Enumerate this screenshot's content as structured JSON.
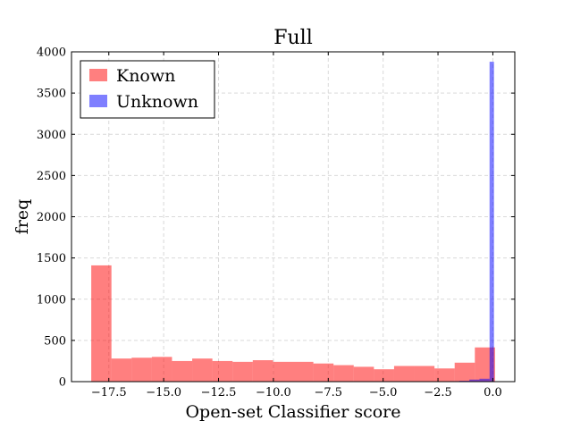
{
  "chart_data": {
    "type": "bar",
    "title": "Full",
    "xlabel": "Open-set Classifier score",
    "ylabel": "freq",
    "xlim": [
      -19.2,
      1.0
    ],
    "ylim": [
      0,
      4000
    ],
    "x_ticks": [
      -17.5,
      -15.0,
      -12.5,
      -10.0,
      -7.5,
      -5.0,
      -2.5,
      0.0
    ],
    "x_tick_labels": [
      "−17.5",
      "−15.0",
      "−12.5",
      "−10.0",
      "−7.5",
      "−5.0",
      "−2.5",
      "0.0"
    ],
    "y_ticks": [
      0,
      500,
      1000,
      1500,
      2000,
      2500,
      3000,
      3500,
      4000
    ],
    "y_tick_labels": [
      "0",
      "500",
      "1000",
      "1500",
      "2000",
      "2500",
      "3000",
      "3500",
      "4000"
    ],
    "grid": true,
    "legend_position": "top-left",
    "series": [
      {
        "name": "Known",
        "color": "#ff0000",
        "alpha": 0.5,
        "bin_edges": [
          -18.3,
          -17.38,
          -16.46,
          -15.54,
          -14.62,
          -13.7,
          -12.78,
          -11.86,
          -10.94,
          -10.02,
          -9.1,
          -8.18,
          -7.26,
          -6.34,
          -5.42,
          -4.5,
          -3.58,
          -2.66,
          -1.74,
          -0.82,
          0.1
        ],
        "counts": [
          1410,
          280,
          290,
          300,
          250,
          280,
          250,
          240,
          260,
          240,
          240,
          220,
          200,
          180,
          150,
          190,
          190,
          160,
          230,
          415
        ]
      },
      {
        "name": "Unknown",
        "color": "#0000ff",
        "alpha": 0.5,
        "bin_edges": [
          -2.9,
          -2.45,
          -1.99,
          -1.53,
          -1.07,
          -0.61,
          -0.15,
          0.05
        ],
        "counts": [
          2,
          4,
          6,
          10,
          25,
          35,
          3880
        ]
      }
    ]
  }
}
